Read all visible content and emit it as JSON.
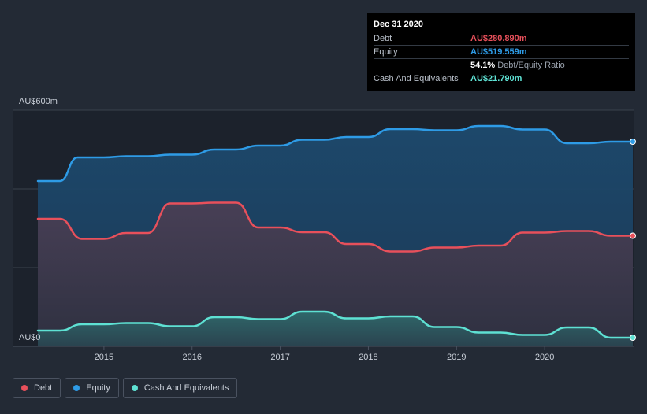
{
  "tooltip": {
    "date": "Dec 31 2020",
    "rows": [
      {
        "label": "Debt",
        "value": "AU$280.890m",
        "color": "#e8505b"
      },
      {
        "label": "Equity",
        "value": "AU$519.559m",
        "color": "#2e9be6"
      },
      {
        "label": "",
        "value": "54.1%",
        "extra": "Debt/Equity Ratio",
        "color": "#ffffff"
      },
      {
        "label": "Cash And Equivalents",
        "value": "AU$21.790m",
        "color": "#5ee1d3"
      }
    ]
  },
  "legend": [
    {
      "label": "Debt",
      "color": "#e8505b"
    },
    {
      "label": "Equity",
      "color": "#2e9be6"
    },
    {
      "label": "Cash And Equivalents",
      "color": "#5ee1d3"
    }
  ],
  "chart_data": {
    "type": "area",
    "y_tick_labels": [
      "AU$600m",
      "AU$0"
    ],
    "ylim": [
      0,
      600
    ],
    "xlim": [
      2014.25,
      2021.0
    ],
    "x_tick_labels": [
      "2015",
      "2016",
      "2017",
      "2018",
      "2019",
      "2020"
    ],
    "x_ticks": [
      2015,
      2016,
      2017,
      2018,
      2019,
      2020
    ],
    "grid": true,
    "legend_placement": "bottom-left",
    "series": [
      {
        "name": "Equity",
        "color": "#2e9be6",
        "points": [
          [
            2014.25,
            420
          ],
          [
            2014.5,
            420
          ],
          [
            2014.7,
            480
          ],
          [
            2015.0,
            480
          ],
          [
            2015.25,
            483
          ],
          [
            2015.5,
            483
          ],
          [
            2015.75,
            487
          ],
          [
            2016.0,
            487
          ],
          [
            2016.25,
            500
          ],
          [
            2016.5,
            500
          ],
          [
            2016.75,
            510
          ],
          [
            2017.0,
            510
          ],
          [
            2017.25,
            525
          ],
          [
            2017.5,
            525
          ],
          [
            2017.75,
            532
          ],
          [
            2018.0,
            532
          ],
          [
            2018.25,
            552
          ],
          [
            2018.5,
            552
          ],
          [
            2018.75,
            549
          ],
          [
            2019.0,
            549
          ],
          [
            2019.25,
            560
          ],
          [
            2019.5,
            560
          ],
          [
            2019.75,
            551
          ],
          [
            2020.0,
            551
          ],
          [
            2020.25,
            516
          ],
          [
            2020.5,
            516
          ],
          [
            2020.75,
            520
          ],
          [
            2021.0,
            520
          ]
        ]
      },
      {
        "name": "Debt",
        "color": "#e8505b",
        "points": [
          [
            2014.25,
            324
          ],
          [
            2014.5,
            324
          ],
          [
            2014.75,
            273
          ],
          [
            2015.0,
            273
          ],
          [
            2015.25,
            288
          ],
          [
            2015.5,
            288
          ],
          [
            2015.75,
            363
          ],
          [
            2016.0,
            363
          ],
          [
            2016.25,
            365
          ],
          [
            2016.5,
            365
          ],
          [
            2016.75,
            302
          ],
          [
            2017.0,
            302
          ],
          [
            2017.25,
            290
          ],
          [
            2017.5,
            290
          ],
          [
            2017.75,
            260
          ],
          [
            2018.0,
            260
          ],
          [
            2018.25,
            241
          ],
          [
            2018.5,
            241
          ],
          [
            2018.75,
            251
          ],
          [
            2019.0,
            251
          ],
          [
            2019.25,
            256
          ],
          [
            2019.5,
            256
          ],
          [
            2019.75,
            289
          ],
          [
            2020.0,
            289
          ],
          [
            2020.25,
            293
          ],
          [
            2020.5,
            293
          ],
          [
            2020.75,
            281
          ],
          [
            2021.0,
            281
          ]
        ]
      },
      {
        "name": "Cash And Equivalents",
        "color": "#5ee1d3",
        "points": [
          [
            2014.25,
            40
          ],
          [
            2014.5,
            40
          ],
          [
            2014.75,
            56
          ],
          [
            2015.0,
            56
          ],
          [
            2015.25,
            59
          ],
          [
            2015.5,
            59
          ],
          [
            2015.75,
            51
          ],
          [
            2016.0,
            51
          ],
          [
            2016.25,
            74
          ],
          [
            2016.5,
            74
          ],
          [
            2016.75,
            69
          ],
          [
            2017.0,
            69
          ],
          [
            2017.25,
            88
          ],
          [
            2017.5,
            88
          ],
          [
            2017.75,
            71
          ],
          [
            2018.0,
            71
          ],
          [
            2018.25,
            76
          ],
          [
            2018.5,
            76
          ],
          [
            2018.75,
            49
          ],
          [
            2019.0,
            49
          ],
          [
            2019.25,
            35
          ],
          [
            2019.5,
            35
          ],
          [
            2019.75,
            29
          ],
          [
            2020.0,
            29
          ],
          [
            2020.25,
            48
          ],
          [
            2020.5,
            48
          ],
          [
            2020.75,
            22
          ],
          [
            2021.0,
            22
          ]
        ]
      }
    ]
  }
}
